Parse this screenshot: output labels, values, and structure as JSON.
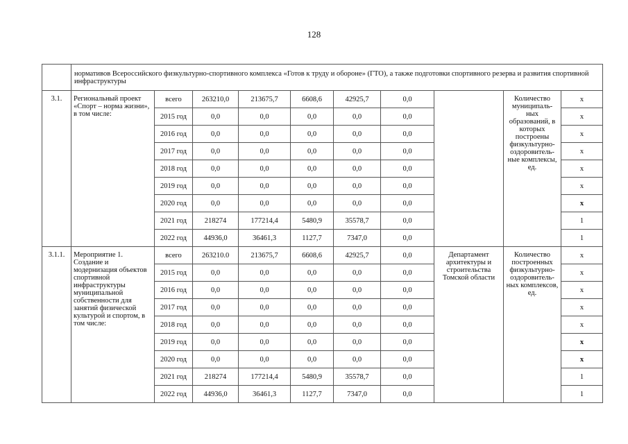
{
  "page_number": "128",
  "header_text": "нормативов Всероссийского физкультурно-спортивного комплекса «Готов к труду и обороне» (ГТО), а также подготовки спортивного резерва и развития спортивной инфраструктуры",
  "sections": [
    {
      "number": "3.1.",
      "name": "Региональный проект «Спорт – норма жизни», в том числе:",
      "department": "",
      "indicator": "Количество муниципаль-ных образований, в которых построены физкультурно-оздоровитель-ные комплексы, ед.",
      "rows": [
        {
          "period": "всего",
          "c1": "263210,0",
          "c2": "213675,7",
          "c3": "6608,6",
          "c4": "42925,7",
          "c5": "0,0",
          "value": "x"
        },
        {
          "period": "2015 год",
          "c1": "0,0",
          "c2": "0,0",
          "c3": "0,0",
          "c4": "0,0",
          "c5": "0,0",
          "value": "x"
        },
        {
          "period": "2016 год",
          "c1": "0,0",
          "c2": "0,0",
          "c3": "0,0",
          "c4": "0,0",
          "c5": "0,0",
          "value": "x"
        },
        {
          "period": "2017 год",
          "c1": "0,0",
          "c2": "0,0",
          "c3": "0,0",
          "c4": "0,0",
          "c5": "0,0",
          "value": "x"
        },
        {
          "period": "2018 год",
          "c1": "0,0",
          "c2": "0,0",
          "c3": "0,0",
          "c4": "0,0",
          "c5": "0,0",
          "value": "x"
        },
        {
          "period": "2019 год",
          "c1": "0,0",
          "c2": "0,0",
          "c3": "0,0",
          "c4": "0,0",
          "c5": "0,0",
          "value": "x"
        },
        {
          "period": "2020 год",
          "c1": "0,0",
          "c2": "0,0",
          "c3": "0,0",
          "c4": "0,0",
          "c5": "0,0",
          "value": "x"
        },
        {
          "period": "2021 год",
          "c1": "218274",
          "c2": "177214,4",
          "c3": "5480,9",
          "c4": "35578,7",
          "c5": "0,0",
          "value": "1"
        },
        {
          "period": "2022 год",
          "c1": "44936,0",
          "c2": "36461,3",
          "c3": "1127,7",
          "c4": "7347,0",
          "c5": "0,0",
          "value": "1"
        }
      ]
    },
    {
      "number": "3.1.1.",
      "name": "Мероприятие 1. Создание и модернизация объектов спортивной инфраструктуры муниципальной собственности для занятий физической культурой и спортом, в том числе:",
      "department": "Департамент архитектуры и строительства Томской области",
      "indicator": "Количество построенных физкультурно-оздоровитель-ных комплексов, ед.",
      "rows": [
        {
          "period": "всего",
          "c1": "263210.0",
          "c2": "213675,7",
          "c3": "6608,6",
          "c4": "42925,7",
          "c5": "0,0",
          "value": "x"
        },
        {
          "period": "2015 год",
          "c1": "0,0",
          "c2": "0,0",
          "c3": "0,0",
          "c4": "0,0",
          "c5": "0,0",
          "value": "x"
        },
        {
          "period": "2016 год",
          "c1": "0,0",
          "c2": "0,0",
          "c3": "0,0",
          "c4": "0,0",
          "c5": "0,0",
          "value": "x"
        },
        {
          "period": "2017 год",
          "c1": "0,0",
          "c2": "0,0",
          "c3": "0,0",
          "c4": "0,0",
          "c5": "0,0",
          "value": "x"
        },
        {
          "period": "2018 год",
          "c1": "0,0",
          "c2": "0,0",
          "c3": "0,0",
          "c4": "0,0",
          "c5": "0,0",
          "value": "x"
        },
        {
          "period": "2019 год",
          "c1": "0,0",
          "c2": "0,0",
          "c3": "0,0",
          "c4": "0,0",
          "c5": "0,0",
          "value": "x"
        },
        {
          "period": "2020 год",
          "c1": "0,0",
          "c2": "0,0",
          "c3": "0,0",
          "c4": "0,0",
          "c5": "0,0",
          "value": "x"
        },
        {
          "period": "2021 год",
          "c1": "218274",
          "c2": "177214,4",
          "c3": "5480,9",
          "c4": "35578,7",
          "c5": "0,0",
          "value": "1"
        },
        {
          "period": "2022 год",
          "c1": "44936,0",
          "c2": "36461,3",
          "c3": "1127,7",
          "c4": "7347,0",
          "c5": "0,0",
          "value": "1"
        }
      ]
    }
  ]
}
